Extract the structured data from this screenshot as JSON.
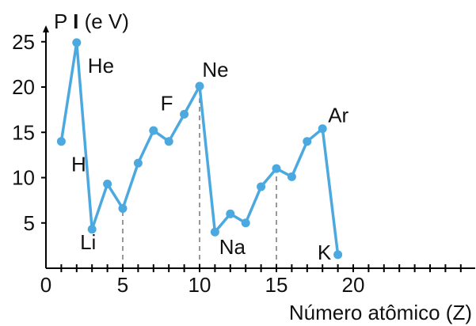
{
  "chart_data": {
    "type": "line",
    "title": "",
    "xlabel": "Número atômico (Z)",
    "ylabel": "P I (e V)",
    "ylabel_prefix": "P ",
    "ylabel_bold": "I",
    "ylabel_suffix": " (e V)",
    "xlim": [
      0,
      27
    ],
    "ylim": [
      0,
      27
    ],
    "x_ticks": [
      0,
      5,
      10,
      15,
      20
    ],
    "y_ticks": [
      5,
      10,
      15,
      20,
      25
    ],
    "grid": false,
    "series": [
      {
        "color": "#4ba9e0",
        "x": [
          1,
          2,
          3,
          4,
          5,
          6,
          7,
          8,
          9,
          10,
          11,
          12,
          13,
          14,
          15,
          16,
          17,
          18,
          19
        ],
        "y": [
          14.0,
          24.9,
          4.3,
          9.3,
          6.6,
          11.6,
          15.2,
          14.0,
          17.0,
          20.1,
          4.0,
          6.0,
          5.0,
          9.0,
          11.0,
          10.1,
          14.0,
          15.4,
          1.5
        ]
      }
    ],
    "annotations": [
      {
        "text": "H",
        "x": 1
      },
      {
        "text": "He",
        "x": 2
      },
      {
        "text": "Li",
        "x": 3
      },
      {
        "text": "F",
        "x": 9
      },
      {
        "text": "Ne",
        "x": 10
      },
      {
        "text": "Na",
        "x": 11
      },
      {
        "text": "Ar",
        "x": 18
      },
      {
        "text": "K",
        "x": 19
      }
    ],
    "reference_lines_x": [
      5,
      10,
      15
    ]
  }
}
